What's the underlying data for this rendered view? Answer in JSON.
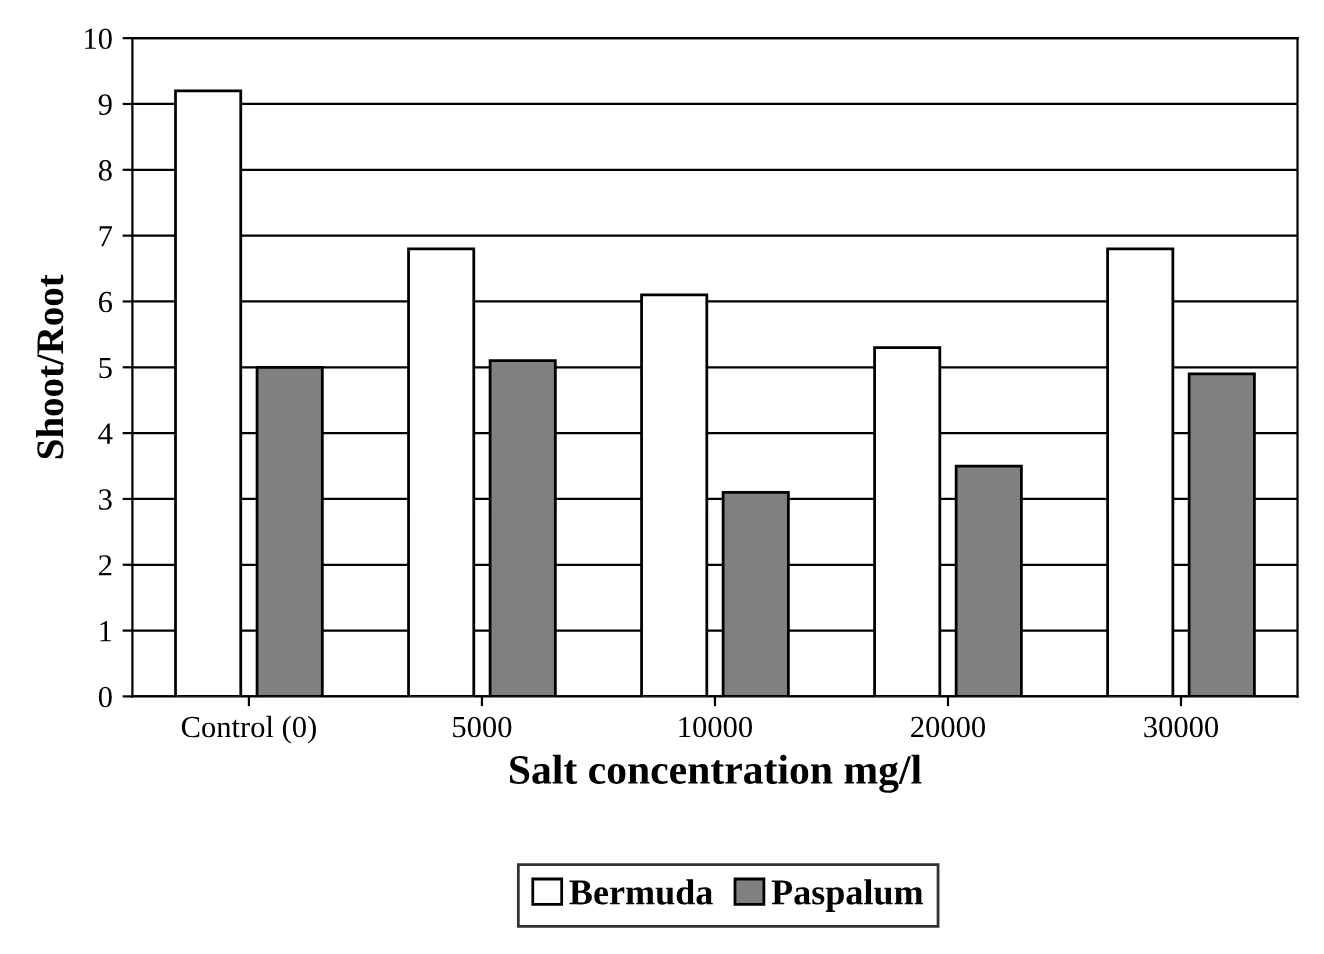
{
  "chart_data": {
    "type": "bar",
    "xlabel": "Salt concentration mg/l",
    "ylabel": "Shoot/Root",
    "categories": [
      "Control (0)",
      "5000",
      "10000",
      "20000",
      "30000"
    ],
    "series": [
      {
        "name": "Bermuda",
        "color": "#ffffff",
        "values": [
          9.2,
          6.8,
          6.1,
          5.3,
          6.8
        ]
      },
      {
        "name": "Paspalum",
        "color": "#808080",
        "values": [
          5.0,
          5.1,
          3.1,
          3.5,
          4.9
        ]
      }
    ],
    "ylim": [
      0,
      10
    ],
    "yticks": [
      0,
      1,
      2,
      3,
      4,
      5,
      6,
      7,
      8,
      9,
      10
    ],
    "grid": "y",
    "legend": "bottom"
  }
}
